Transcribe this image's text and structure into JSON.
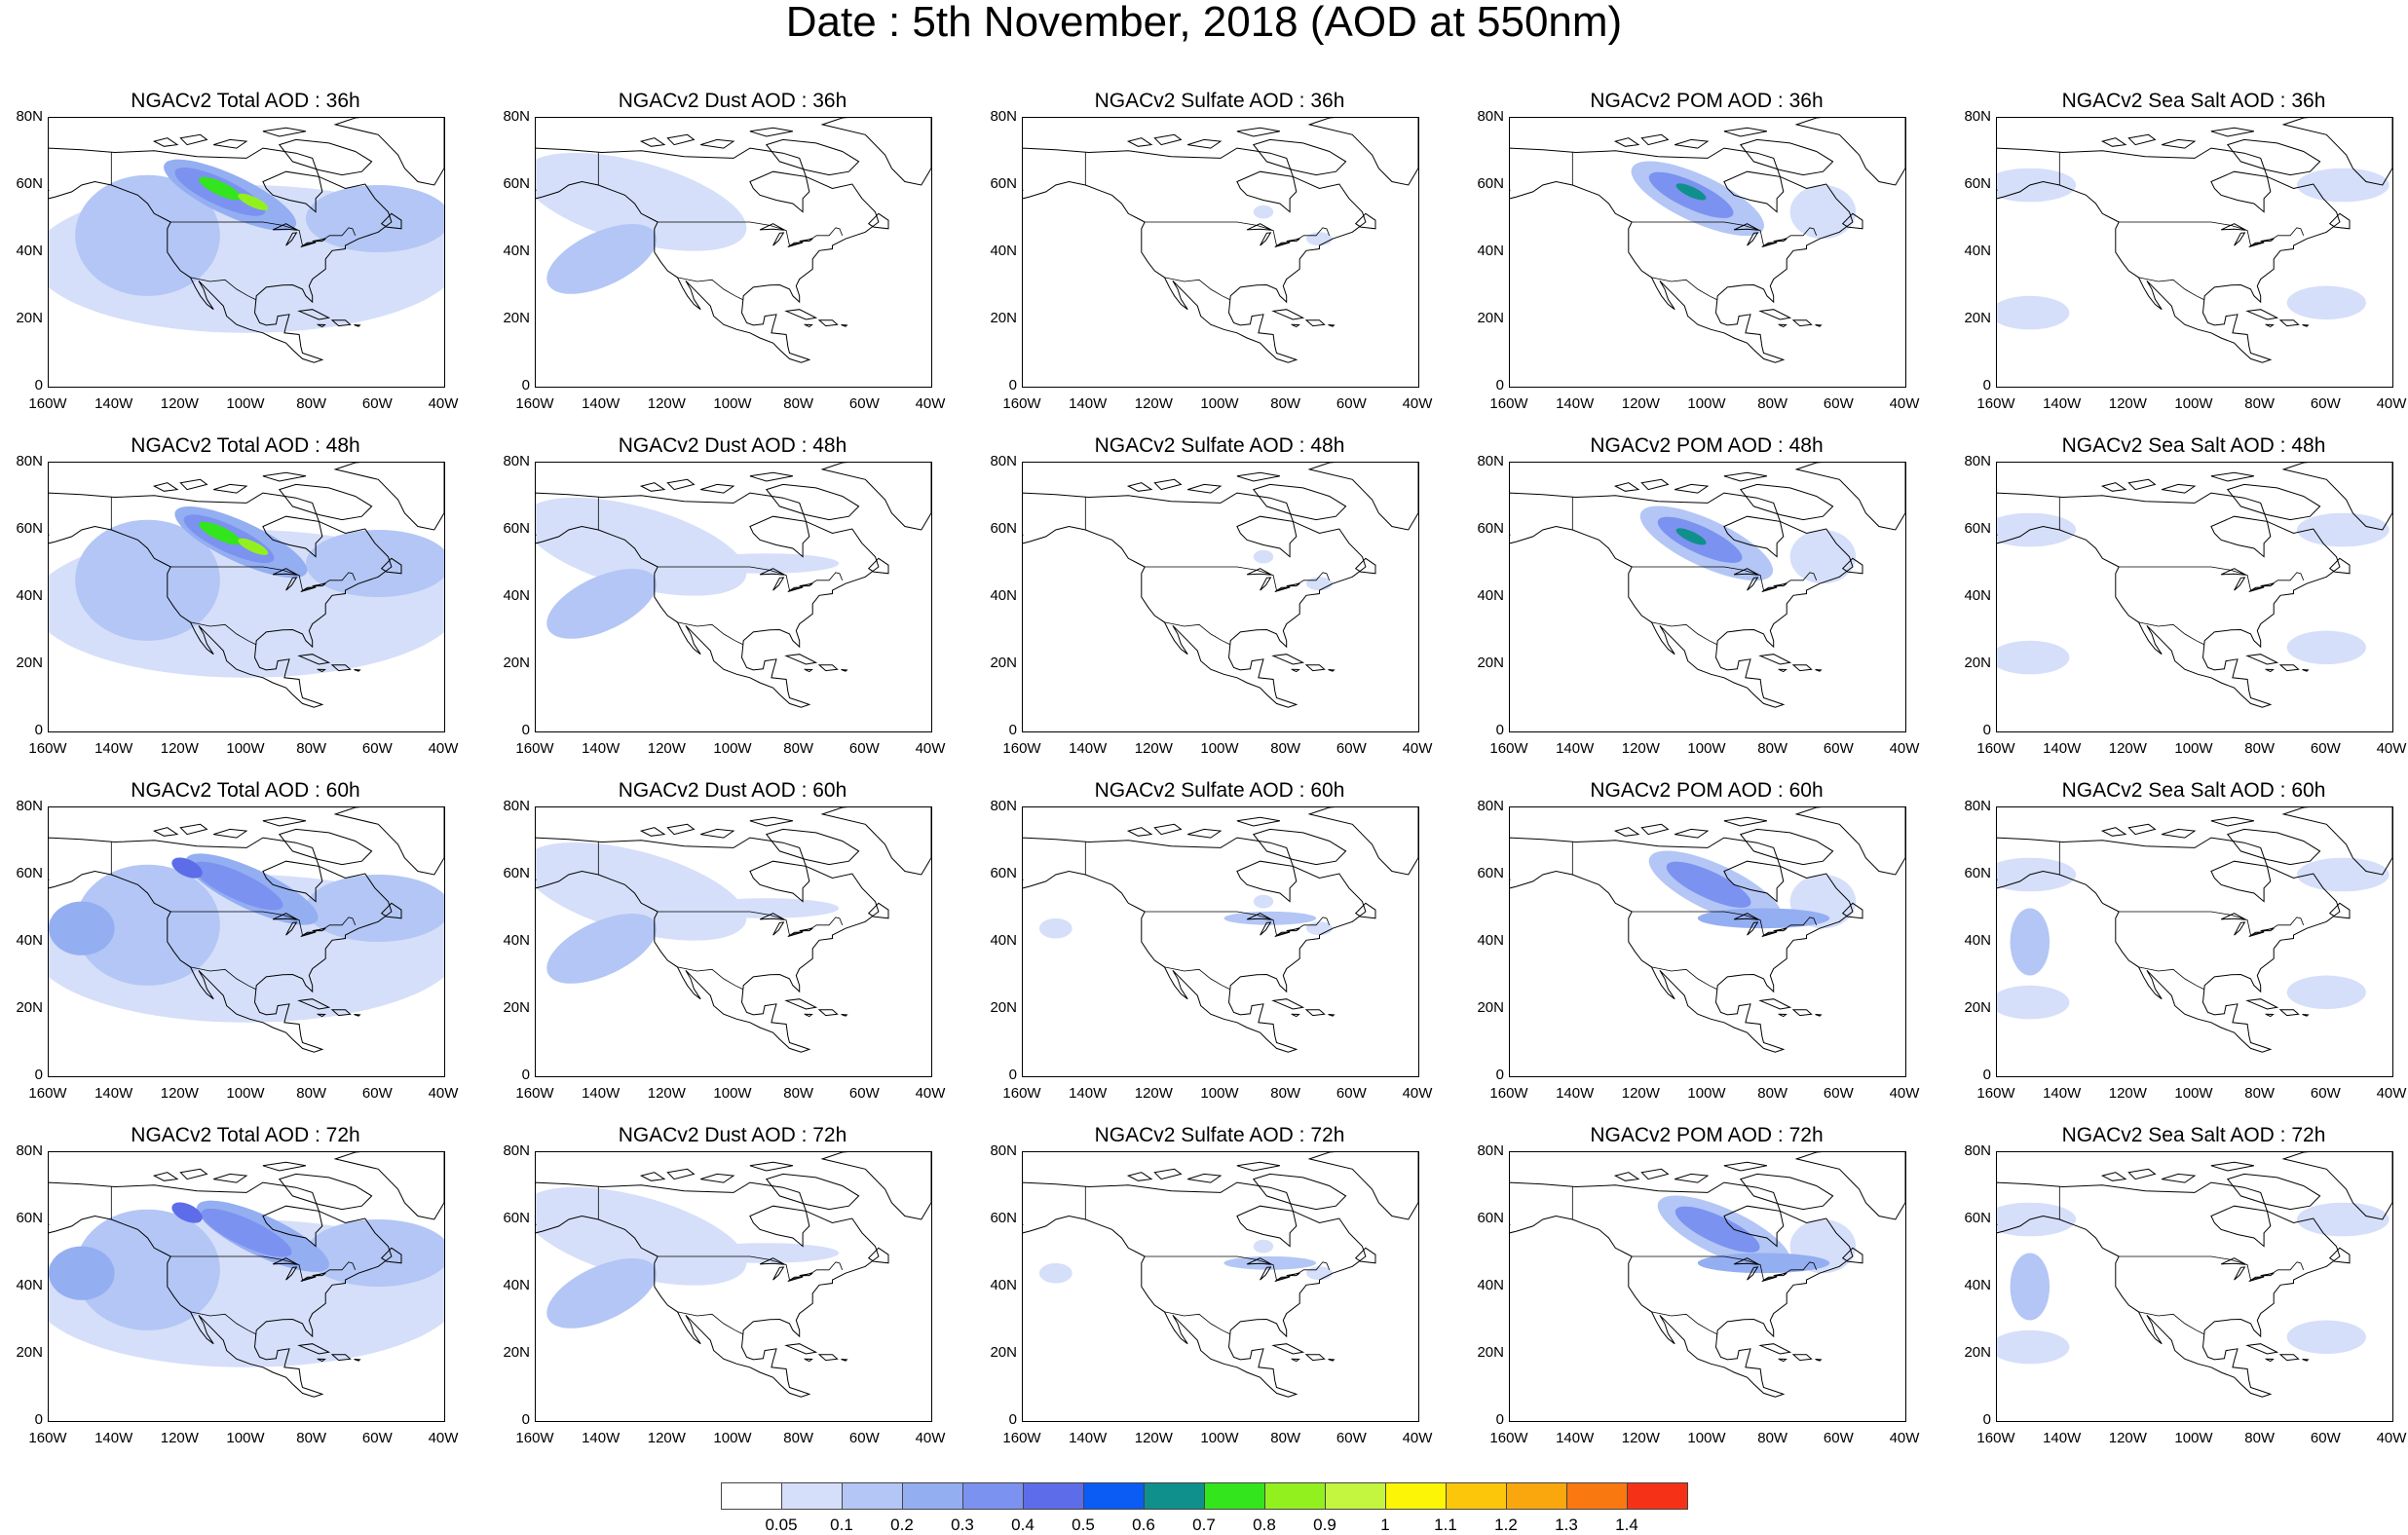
{
  "title": "Date : 5th November, 2018 (AOD at 550nm)",
  "lat_labels": [
    "80N",
    "60N",
    "40N",
    "20N",
    "0"
  ],
  "lon_labels": [
    "160W",
    "140W",
    "120W",
    "100W",
    "80W",
    "60W",
    "40W"
  ],
  "panels": [
    [
      {
        "title": "NGACv2 Total AOD : 36h",
        "field": "total",
        "hour": 36
      },
      {
        "title": "NGACv2 Dust AOD : 36h",
        "field": "dust",
        "hour": 36
      },
      {
        "title": "NGACv2 Sulfate AOD : 36h",
        "field": "sulfate",
        "hour": 36
      },
      {
        "title": "NGACv2 POM AOD : 36h",
        "field": "pom",
        "hour": 36
      },
      {
        "title": "NGACv2 Sea Salt AOD : 36h",
        "field": "seasalt",
        "hour": 36
      }
    ],
    [
      {
        "title": "NGACv2 Total AOD : 48h",
        "field": "total",
        "hour": 48
      },
      {
        "title": "NGACv2 Dust AOD : 48h",
        "field": "dust",
        "hour": 48
      },
      {
        "title": "NGACv2 Sulfate AOD : 48h",
        "field": "sulfate",
        "hour": 48
      },
      {
        "title": "NGACv2 POM AOD : 48h",
        "field": "pom",
        "hour": 48
      },
      {
        "title": "NGACv2 Sea Salt AOD : 48h",
        "field": "seasalt",
        "hour": 48
      }
    ],
    [
      {
        "title": "NGACv2 Total AOD : 60h",
        "field": "total",
        "hour": 60
      },
      {
        "title": "NGACv2 Dust AOD : 60h",
        "field": "dust",
        "hour": 60
      },
      {
        "title": "NGACv2 Sulfate AOD : 60h",
        "field": "sulfate",
        "hour": 60
      },
      {
        "title": "NGACv2 POM AOD : 60h",
        "field": "pom",
        "hour": 60
      },
      {
        "title": "NGACv2 Sea Salt AOD : 60h",
        "field": "seasalt",
        "hour": 60
      }
    ],
    [
      {
        "title": "NGACv2 Total AOD : 72h",
        "field": "total",
        "hour": 72
      },
      {
        "title": "NGACv2 Dust AOD : 72h",
        "field": "dust",
        "hour": 72
      },
      {
        "title": "NGACv2 Sulfate AOD : 72h",
        "field": "sulfate",
        "hour": 72
      },
      {
        "title": "NGACv2 POM AOD : 72h",
        "field": "pom",
        "hour": 72
      },
      {
        "title": "NGACv2 Sea Salt  AOD : 72h",
        "field": "seasalt",
        "hour": 72
      }
    ]
  ],
  "colorbar": {
    "labels": [
      "0.05",
      "0.1",
      "0.2",
      "0.3",
      "0.4",
      "0.5",
      "0.6",
      "0.7",
      "0.8",
      "0.9",
      "1",
      "1.1",
      "1.2",
      "1.3",
      "1.4"
    ],
    "colors": [
      "#ffffff",
      "#d5dffa",
      "#b3c6f5",
      "#94aef2",
      "#7b92f0",
      "#5d6ce8",
      "#0a5cf5",
      "#10908c",
      "#33e51c",
      "#93f01f",
      "#c4f53f",
      "#fcf505",
      "#fcc60a",
      "#faa70d",
      "#fa7810",
      "#f53217"
    ]
  }
}
